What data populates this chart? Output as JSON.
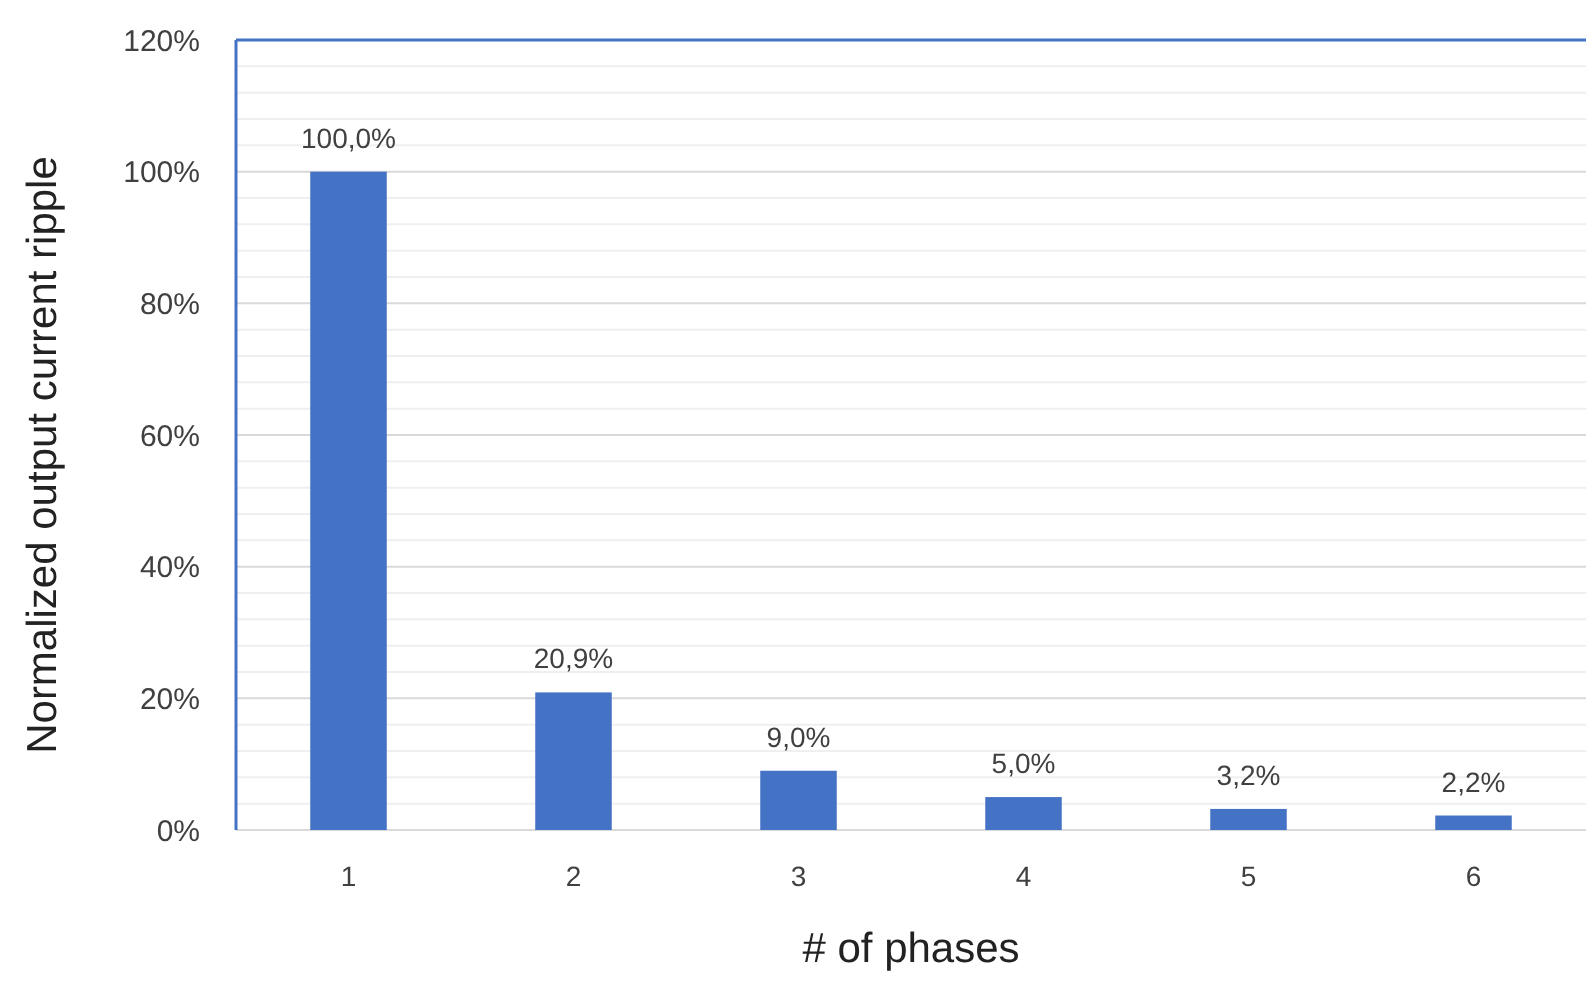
{
  "chart_data": {
    "type": "bar",
    "xlabel": "# of phases",
    "ylabel": "Normalized output current ripple",
    "categories": [
      "1",
      "2",
      "3",
      "4",
      "5",
      "6"
    ],
    "values": [
      100,
      20.9,
      9.0,
      5.0,
      3.2,
      2.2
    ],
    "value_labels": [
      "100,0%",
      "20,9%",
      "9,0%",
      "5,0%",
      "3,2%",
      "2,2%"
    ],
    "color": "#4472c4",
    "ylim": [
      0,
      120
    ],
    "yticks": [
      {
        "value": 0,
        "label": "0%"
      },
      {
        "value": 4,
        "label": null
      },
      {
        "value": 8,
        "label": null
      },
      {
        "value": 12,
        "label": null
      },
      {
        "value": 16,
        "label": null
      },
      {
        "value": 20,
        "label": "20%"
      },
      {
        "value": 24,
        "label": null
      },
      {
        "value": 28,
        "label": null
      },
      {
        "value": 32,
        "label": null
      },
      {
        "value": 36,
        "label": null
      },
      {
        "value": 40,
        "label": "40%"
      },
      {
        "value": 44,
        "label": null
      },
      {
        "value": 48,
        "label": null
      },
      {
        "value": 52,
        "label": null
      },
      {
        "value": 56,
        "label": null
      },
      {
        "value": 60,
        "label": "60%"
      },
      {
        "value": 64,
        "label": null
      },
      {
        "value": 68,
        "label": null
      },
      {
        "value": 72,
        "label": null
      },
      {
        "value": 76,
        "label": null
      },
      {
        "value": 80,
        "label": "80%"
      },
      {
        "value": 84,
        "label": null
      },
      {
        "value": 88,
        "label": null
      },
      {
        "value": 92,
        "label": null
      },
      {
        "value": 96,
        "label": null
      },
      {
        "value": 100,
        "label": "100%"
      },
      {
        "value": 104,
        "label": null
      },
      {
        "value": 108,
        "label": null
      },
      {
        "value": 112,
        "label": null
      },
      {
        "value": 116,
        "label": null
      },
      {
        "value": 120,
        "label": "120%"
      }
    ],
    "grid": "y"
  }
}
